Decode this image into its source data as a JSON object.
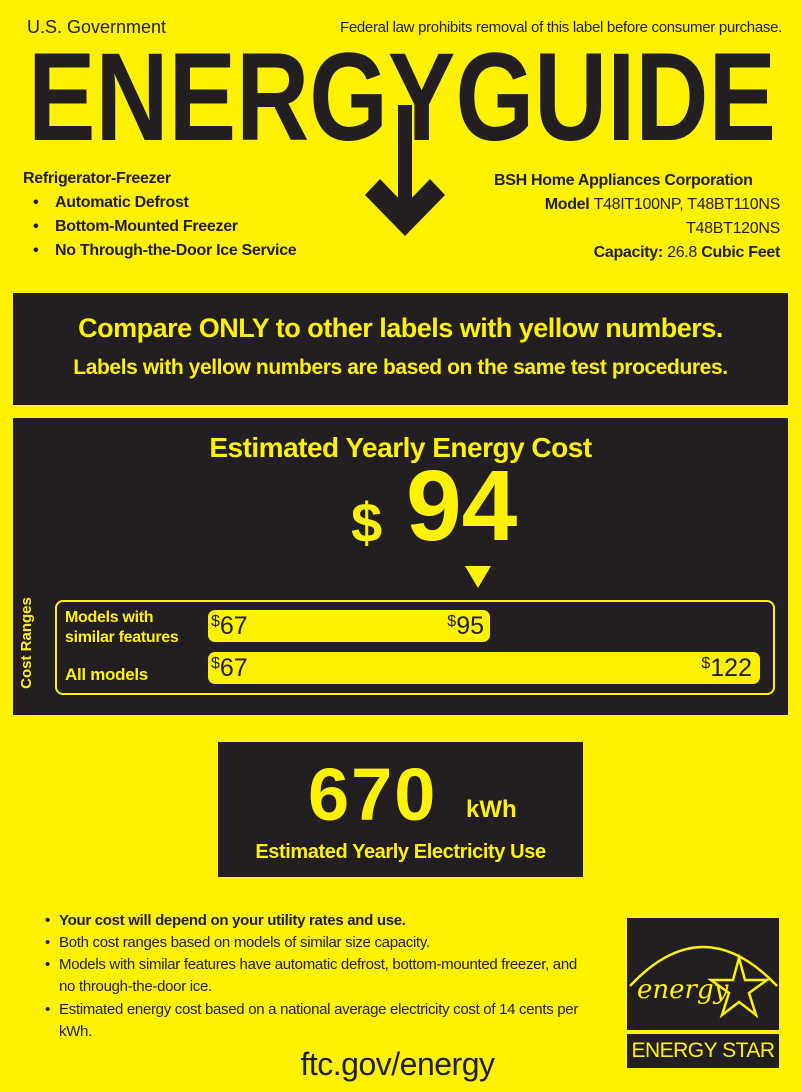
{
  "header": {
    "government": "U.S. Government",
    "federal_notice": "Federal law prohibits removal of this label before consumer purchase.",
    "title": "ENERGYGUIDE"
  },
  "appliance": {
    "type": "Refrigerator-Freezer",
    "features": [
      "Automatic Defrost",
      "Bottom-Mounted Freezer",
      "No Through-the-Door Ice Service"
    ]
  },
  "manufacturer": {
    "name": "BSH Home Appliances Corporation",
    "model_label": "Model",
    "models_line1": "T48IT100NP,  T48BT110NS",
    "models_line2": "T48BT120NS",
    "capacity_label": "Capacity:",
    "capacity_value": "26.8",
    "capacity_unit": "Cubic Feet"
  },
  "compare": {
    "line1": "Compare ONLY to other labels with yellow numbers.",
    "line2": "Labels with yellow numbers are based on the same test procedures."
  },
  "cost": {
    "title": "Estimated Yearly Energy Cost",
    "currency": "$",
    "value": "94",
    "value_number": 94,
    "ranges_label": "Cost Ranges",
    "similar": {
      "label_line1": "Models with",
      "label_line2": "similar features",
      "min": "67",
      "max": "95"
    },
    "all": {
      "label": "All models",
      "min": "67",
      "max": "122"
    },
    "currency_symbol": "$"
  },
  "electricity": {
    "value": "670",
    "unit": "kWh",
    "label": "Estimated Yearly Electricity Use"
  },
  "notes": [
    "Your cost will depend on your utility rates and use.",
    "Both cost ranges based on models of similar size capacity.",
    "Models with similar features have automatic defrost, bottom-mounted freezer, and no through-the-door ice.",
    "Estimated energy cost based on a national average electricity cost of 14 cents per kWh."
  ],
  "footer": {
    "url": "ftc.gov/energy"
  },
  "energy_star": {
    "script": "energy",
    "label": "ENERGY STAR"
  },
  "colors": {
    "yellow": "#fff200",
    "dark": "#231f20"
  }
}
